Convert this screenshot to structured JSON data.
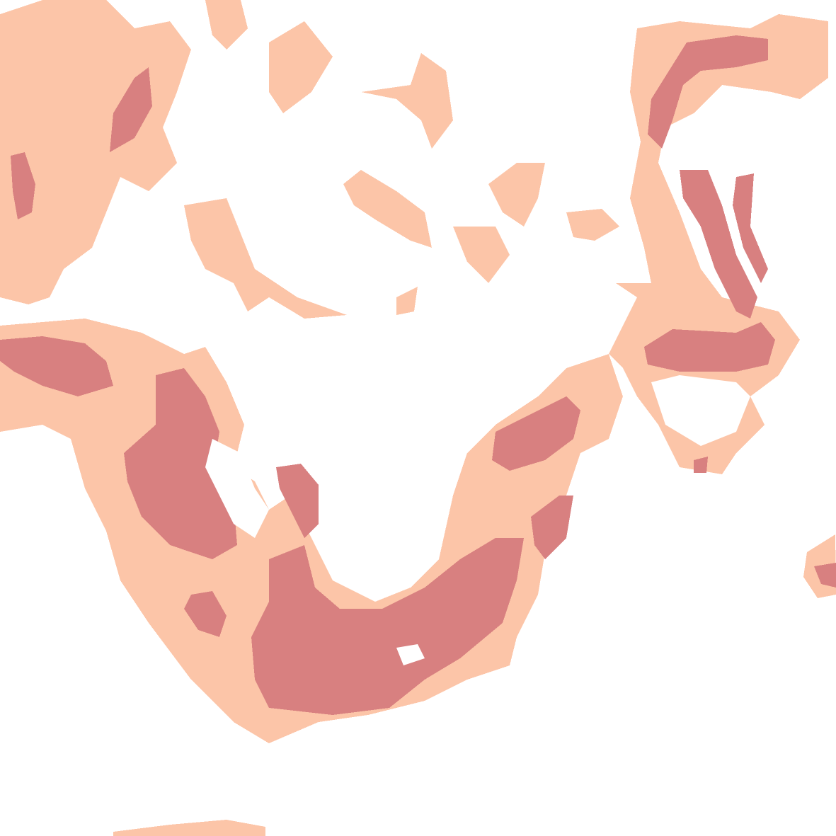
{
  "map": {
    "type": "choropleth-raster-tile",
    "background_color": "#ffffff",
    "classes": [
      {
        "id": "low",
        "color": "#fcc5a8"
      },
      {
        "id": "high",
        "color": "#d88080"
      }
    ]
  }
}
